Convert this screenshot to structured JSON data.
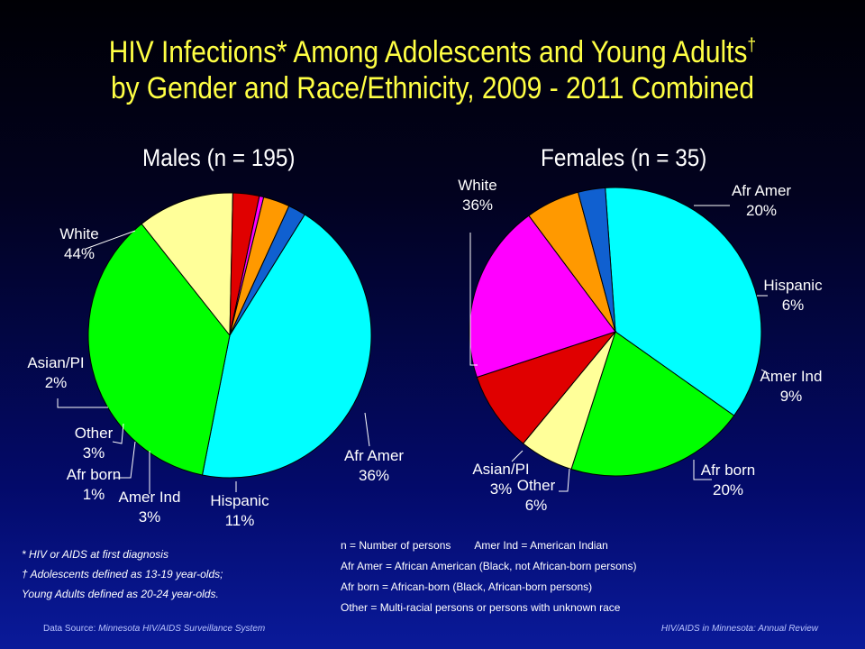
{
  "title": {
    "line1": "HIV Infections* Among Adolescents and Young Adults",
    "dagger": "†",
    "line2": "by Gender and Race/Ethnicity, 2009 - 2011 Combined"
  },
  "chart_data": [
    {
      "type": "pie",
      "title": "Males (n = 195)",
      "slices": [
        {
          "label": "White",
          "pct_label": "44%",
          "value": 44,
          "color": "#00ffff"
        },
        {
          "label": "Afr Amer",
          "pct_label": "36%",
          "value": 36,
          "color": "#00ff00"
        },
        {
          "label": "Hispanic",
          "pct_label": "11%",
          "value": 11,
          "color": "#ffff99"
        },
        {
          "label": "Amer Ind",
          "pct_label": "3%",
          "value": 3,
          "color": "#e00000"
        },
        {
          "label": "Afr born",
          "pct_label": "1%",
          "value": 0.5,
          "color": "#ff00ff"
        },
        {
          "label": "Other",
          "pct_label": "3%",
          "value": 3,
          "color": "#ff9900"
        },
        {
          "label": "Asian/PI",
          "pct_label": "2%",
          "value": 2,
          "color": "#1060d0"
        }
      ]
    },
    {
      "type": "pie",
      "title": "Females (n = 35)",
      "slices": [
        {
          "label": "White",
          "pct_label": "36%",
          "value": 36,
          "color": "#00ffff"
        },
        {
          "label": "Afr Amer",
          "pct_label": "20%",
          "value": 20,
          "color": "#00ff00"
        },
        {
          "label": "Hispanic",
          "pct_label": "6%",
          "value": 6,
          "color": "#ffff99"
        },
        {
          "label": "Amer Ind",
          "pct_label": "9%",
          "value": 9,
          "color": "#e00000"
        },
        {
          "label": "Afr born",
          "pct_label": "20%",
          "value": 20,
          "color": "#ff00ff"
        },
        {
          "label": "Other",
          "pct_label": "6%",
          "value": 6,
          "color": "#ff9900"
        },
        {
          "label": "Asian/PI",
          "pct_label": "3%",
          "value": 3,
          "color": "#1060d0"
        }
      ]
    }
  ],
  "notes": [
    "* HIV or AIDS at first diagnosis",
    "† Adolescents defined as 13-19 year-olds;",
    "Young Adults defined as 20-24 year-olds."
  ],
  "definitions": [
    "n = Number of persons        Amer Ind = American Indian",
    "Afr Amer = African American (Black, not African-born persons)",
    "Afr born = African-born (Black, African-born persons)",
    "Other = Multi-racial persons or persons with unknown race"
  ],
  "footer": {
    "source_prefix": "Data Source: ",
    "source": "Minnesota HIV/AIDS Surveillance System",
    "publication": "HIV/AIDS in Minnesota: Annual Review"
  }
}
